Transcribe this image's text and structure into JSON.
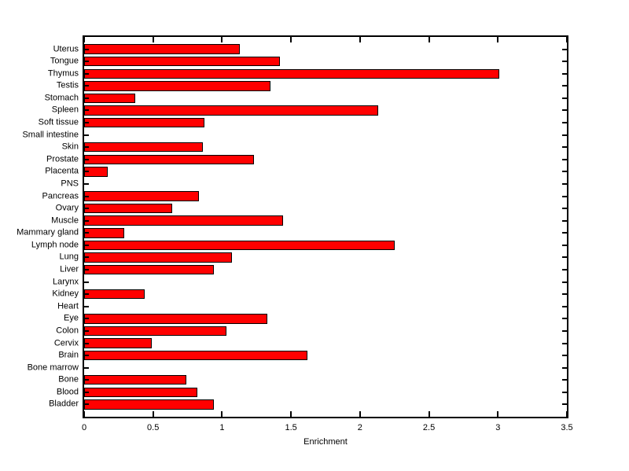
{
  "chart_data": {
    "type": "bar",
    "orientation": "horizontal",
    "title": "",
    "xlabel": "Enrichment",
    "ylabel": "",
    "xlim": [
      0,
      3.5
    ],
    "xticks": [
      0,
      0.5,
      1,
      1.5,
      2,
      2.5,
      3,
      3.5
    ],
    "xtick_labels": [
      "0",
      "0.5",
      "1",
      "1.5",
      "2",
      "2.5",
      "3",
      "3.5"
    ],
    "grid": false,
    "legend": null,
    "bar_color": "#ff0000",
    "bar_edge_color": "#000000",
    "axis_color": "#000000",
    "background_color": "#ffffff",
    "categories": [
      "Uterus",
      "Tongue",
      "Thymus",
      "Testis",
      "Stomach",
      "Spleen",
      "Soft tissue",
      "Small intestine",
      "Skin",
      "Prostate",
      "Placenta",
      "PNS",
      "Pancreas",
      "Ovary",
      "Muscle",
      "Mammary gland",
      "Lymph node",
      "Lung",
      "Liver",
      "Larynx",
      "Kidney",
      "Heart",
      "Eye",
      "Colon",
      "Cervix",
      "Brain",
      "Bone marrow",
      "Bone",
      "Blood",
      "Bladder"
    ],
    "category_order": "top-to-bottom",
    "values": [
      1.13,
      1.42,
      3.01,
      1.35,
      0.37,
      2.13,
      0.87,
      0,
      0.86,
      1.23,
      0.17,
      0,
      0.83,
      0.64,
      1.44,
      0.29,
      2.25,
      1.07,
      0.94,
      0,
      0.44,
      0,
      1.33,
      1.03,
      0.49,
      1.62,
      0,
      0.74,
      0.82,
      0.94
    ]
  }
}
